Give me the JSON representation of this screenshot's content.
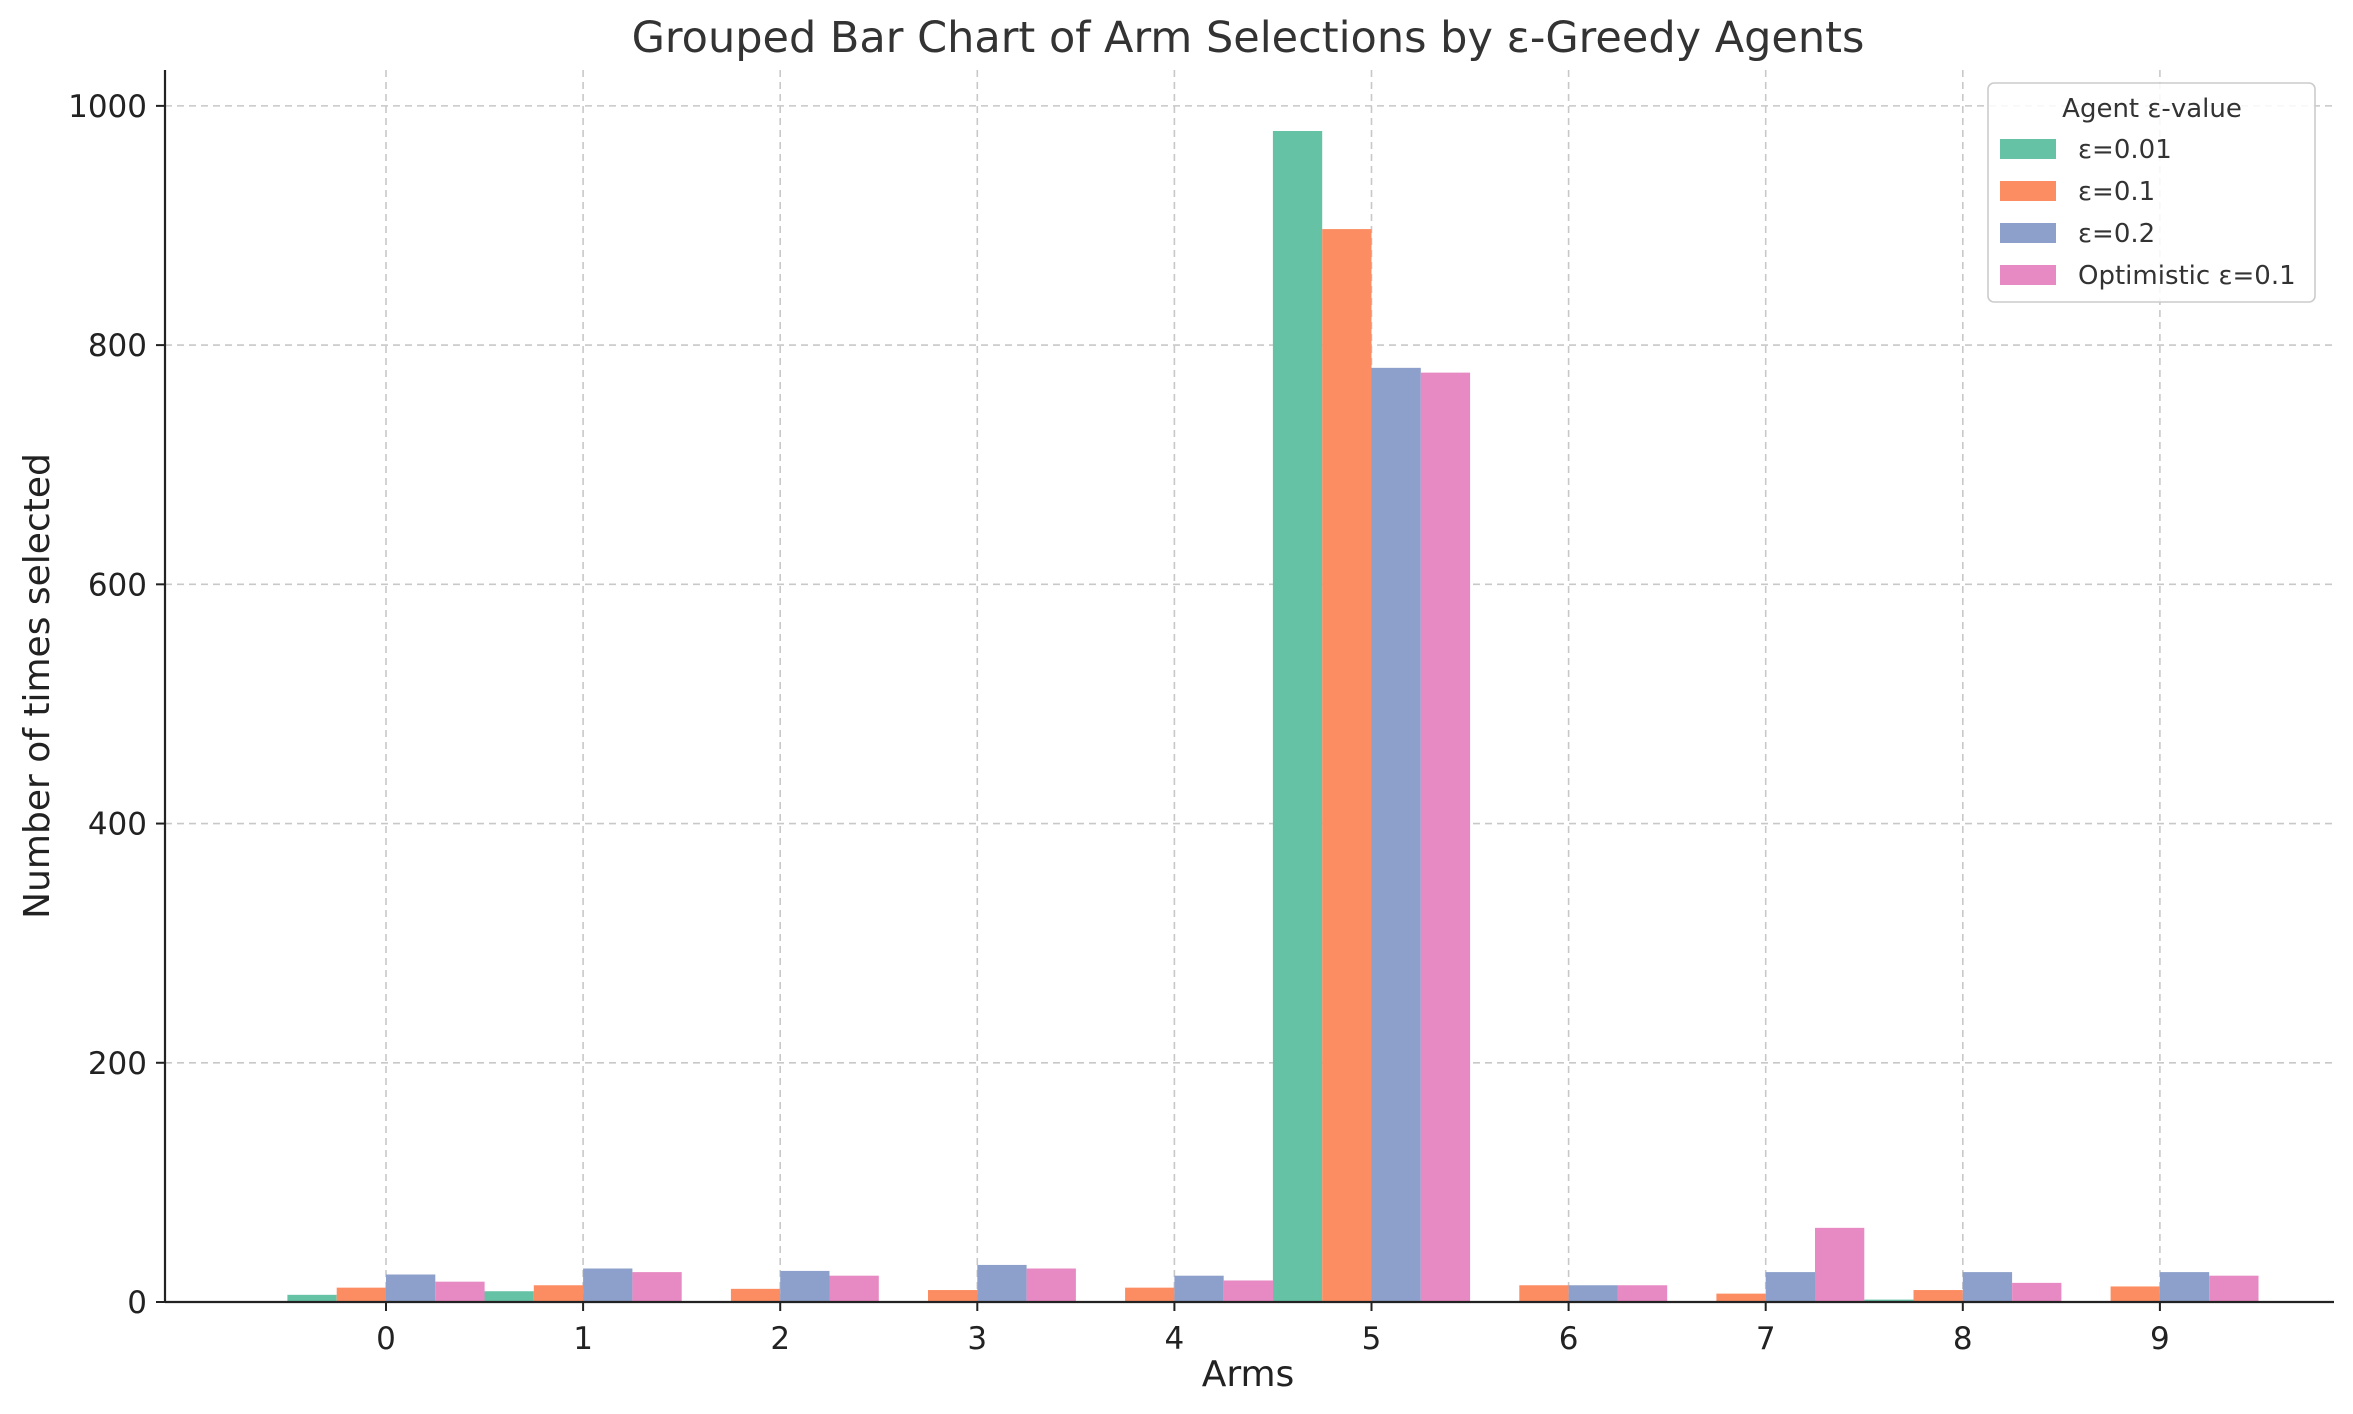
{
  "chart_data": {
    "type": "bar",
    "title": "Grouped Bar Chart of Arm Selections by ε-Greedy Agents",
    "xlabel": "Arms",
    "ylabel": "Number of times selected",
    "categories": [
      "0",
      "1",
      "2",
      "3",
      "4",
      "5",
      "6",
      "7",
      "8",
      "9"
    ],
    "yticks": [
      "0",
      "200",
      "400",
      "600",
      "800",
      "1000"
    ],
    "ylim": [
      0,
      1030
    ],
    "grid": true,
    "legend": {
      "title": "Agent ε-value",
      "position": "top-right"
    },
    "series": [
      {
        "name": "ε=0.01",
        "color": "#66c2a5",
        "values": [
          6,
          9,
          0,
          0,
          0,
          979,
          0,
          0,
          2,
          0
        ]
      },
      {
        "name": "ε=0.1",
        "color": "#fc8d62",
        "values": [
          12,
          14,
          11,
          10,
          12,
          897,
          14,
          7,
          10,
          13
        ]
      },
      {
        "name": "ε=0.2",
        "color": "#8da0cb",
        "values": [
          23,
          28,
          26,
          31,
          22,
          781,
          14,
          25,
          25,
          25
        ]
      },
      {
        "name": "Optimistic ε=0.1",
        "color": "#e78ac3",
        "values": [
          17,
          25,
          22,
          28,
          18,
          777,
          14,
          62,
          16,
          22
        ]
      }
    ]
  }
}
